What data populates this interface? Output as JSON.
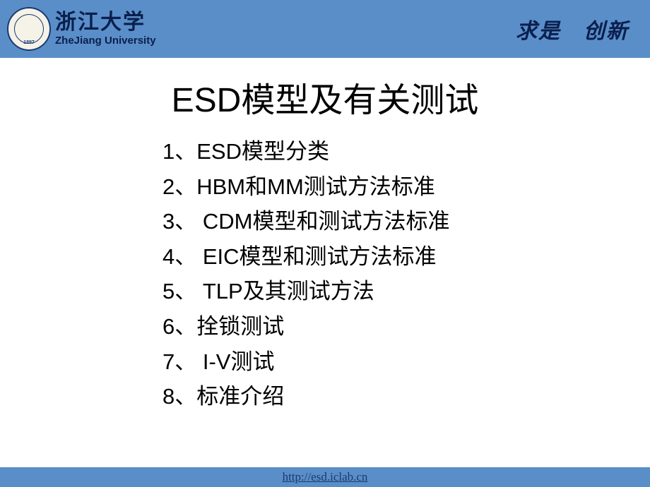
{
  "header": {
    "seal_text": "ZHE JIANG UNIVERSITY",
    "university_cn": "浙江大学",
    "university_en": "ZheJiang University",
    "motto": "求是　创新"
  },
  "slide": {
    "title": "ESD模型及有关测试",
    "items": [
      "1、ESD模型分类",
      "2、HBM和MM测试方法标准",
      "3、 CDM模型和测试方法标准",
      "4、 EIC模型和测试方法标准",
      "5、 TLP及其测试方法",
      "6、拴锁测试",
      "7、 I-V测试",
      "8、标准介绍"
    ]
  },
  "footer": {
    "url": "http://esd.iclab.cn"
  },
  "style": {
    "header_bg": "#5a8ec9",
    "header_text": "#0a1f4d",
    "body_bg": "#ffffff",
    "title_fontsize": 48,
    "item_fontsize": 31,
    "footer_bg": "#5a8ec9",
    "footer_link_color": "#1a3a6e"
  }
}
